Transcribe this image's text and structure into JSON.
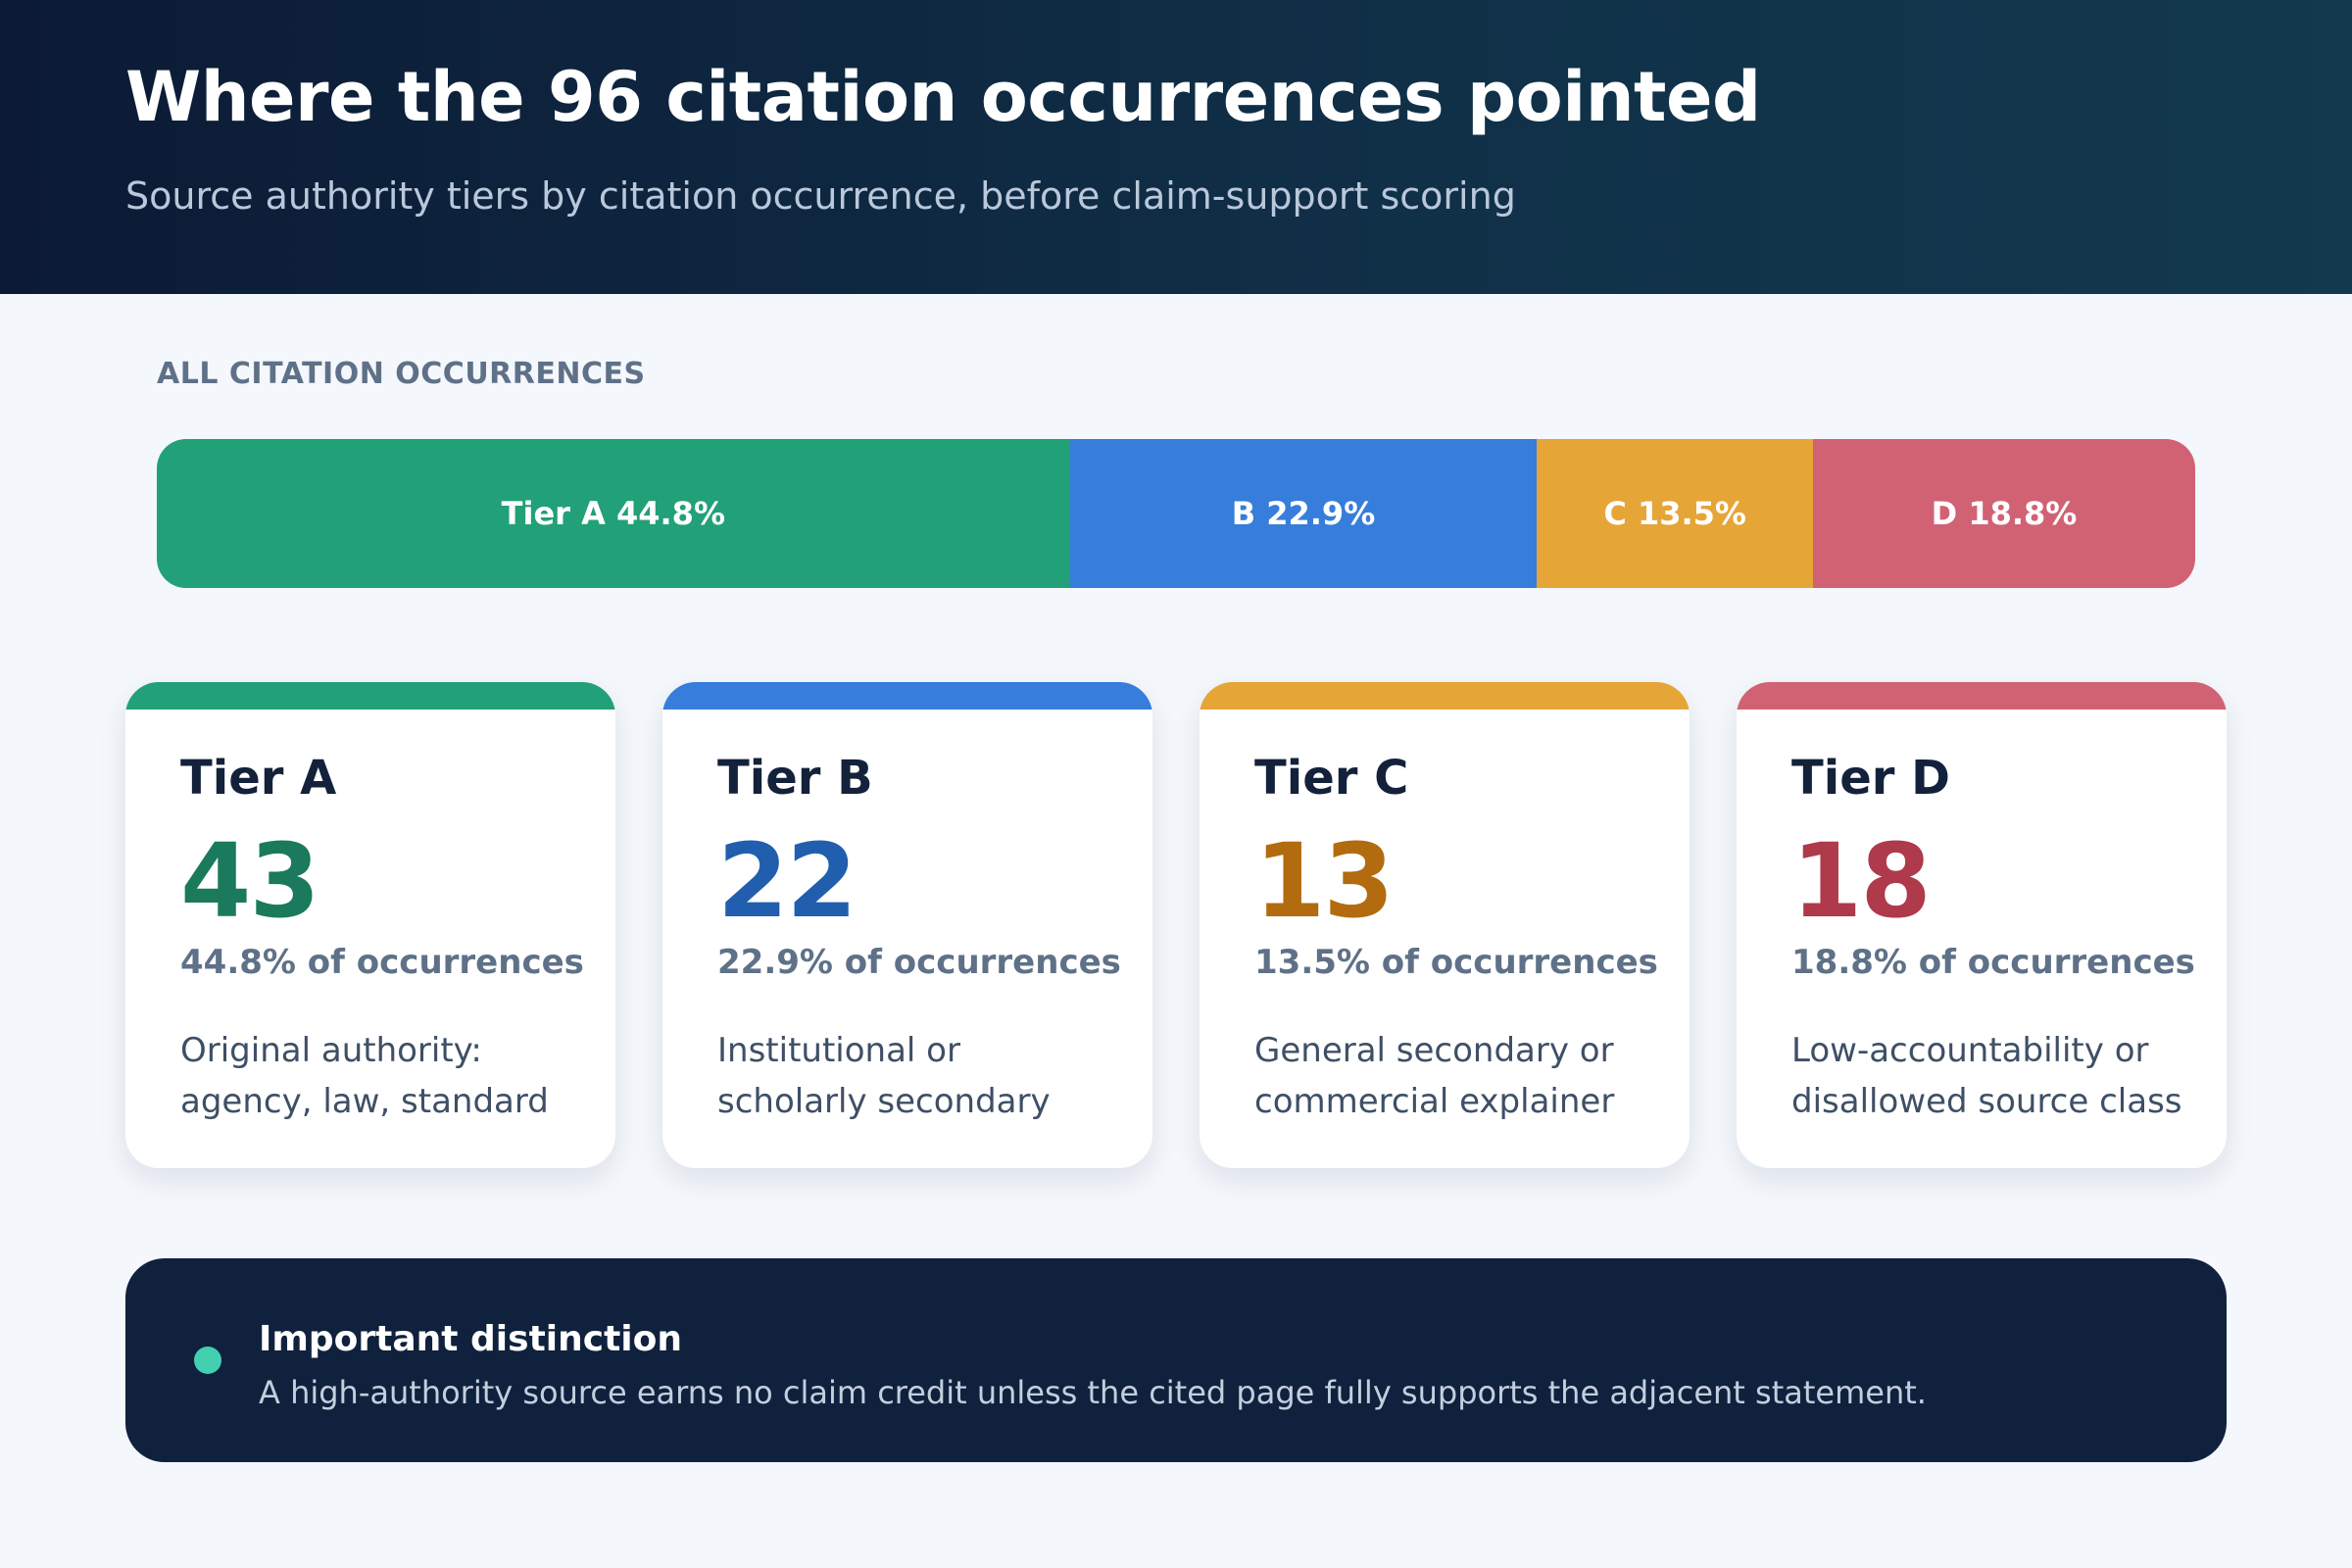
{
  "header": {
    "title": "Where the 96 citation occurrences pointed",
    "subtitle": "Source authority tiers by citation occurrence, before claim-support scoring"
  },
  "section_label": "ALL CITATION OCCURRENCES",
  "chart_data": {
    "type": "bar",
    "orientation": "horizontal-stacked",
    "total": 96,
    "series": [
      {
        "name": "Tier A",
        "bar_label": "Tier A 44.8%",
        "value": 43,
        "percent": 44.8,
        "color": "#22a078"
      },
      {
        "name": "Tier B",
        "bar_label": "B 22.9%",
        "value": 22,
        "percent": 22.9,
        "color": "#377ddb"
      },
      {
        "name": "Tier C",
        "bar_label": "C 13.5%",
        "value": 13,
        "percent": 13.5,
        "color": "#e6a537"
      },
      {
        "name": "Tier D",
        "bar_label": "D 18.8%",
        "value": 18,
        "percent": 18.8,
        "color": "#d16274"
      }
    ]
  },
  "cards": [
    {
      "title": "Tier A",
      "count": "43",
      "pct_label": "44.8% of occurrences",
      "desc": "Original authority: agency, law, standard",
      "accent": "#22a078",
      "count_color": "#1a7a5b"
    },
    {
      "title": "Tier B",
      "count": "22",
      "pct_label": "22.9% of occurrences",
      "desc": "Institutional or scholarly secondary",
      "accent": "#377ddb",
      "count_color": "#215fae"
    },
    {
      "title": "Tier C",
      "count": "13",
      "pct_label": "13.5% of occurrences",
      "desc": "General secondary or commercial explainer",
      "accent": "#e6a537",
      "count_color": "#b36b10"
    },
    {
      "title": "Tier D",
      "count": "18",
      "pct_label": "18.8% of occurrences",
      "desc": "Low-accountability or disallowed source class",
      "accent": "#d16274",
      "count_color": "#ae3a4c"
    }
  ],
  "callout": {
    "title": "Important distinction",
    "text": "A high-authority source earns no claim credit unless the cited page fully supports the adjacent statement."
  }
}
